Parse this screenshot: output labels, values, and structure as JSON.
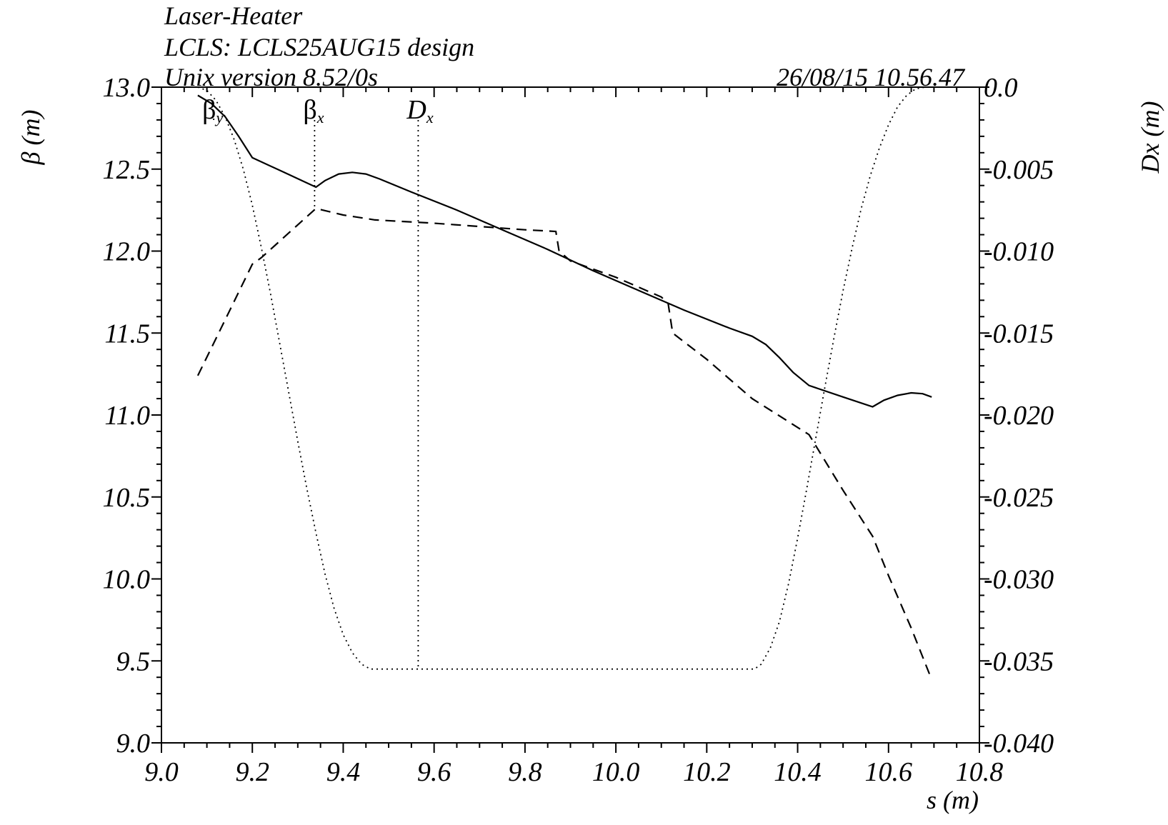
{
  "header": {
    "line1": "Laser-Heater",
    "line2": "LCLS: LCLS25AUG15 design",
    "line3": "Unix version 8.52/0s",
    "timestamp": "26/08/15  10.56.47"
  },
  "chart_data": {
    "type": "line",
    "xlabel": "s (m)",
    "ylabel_left": "β (m)",
    "ylabel_right": "Dx (m)",
    "xlim": [
      9.0,
      10.8
    ],
    "ylim_left": [
      9.0,
      13.0
    ],
    "ylim_right": [
      -0.04,
      0.0
    ],
    "x_ticks": [
      "9.0",
      "9.2",
      "9.4",
      "9.6",
      "9.8",
      "10.0",
      "10.2",
      "10.4",
      "10.6",
      "10.8"
    ],
    "left_ticks": [
      "9.0",
      "9.5",
      "10.0",
      "10.5",
      "11.0",
      "11.5",
      "12.0",
      "12.5",
      "13.0"
    ],
    "right_ticks": [
      "-0.040",
      "-0.035",
      "-0.030",
      "-0.025",
      "-0.020",
      "-0.015",
      "-0.010",
      "-0.005",
      "0.0"
    ],
    "grid": false,
    "series": [
      {
        "name": "βy",
        "label_main": "β",
        "label_sub": "y",
        "axis": "left",
        "style": "solid",
        "label_x": 9.115,
        "x": [
          9.08,
          9.11,
          9.14,
          9.17,
          9.2,
          9.27,
          9.34,
          9.36,
          9.39,
          9.42,
          9.45,
          9.48,
          9.55,
          9.65,
          9.75,
          9.85,
          9.95,
          10.05,
          10.15,
          10.25,
          10.3,
          10.33,
          10.36,
          10.39,
          10.425,
          10.5,
          10.565,
          10.59,
          10.62,
          10.65,
          10.675,
          10.695
        ],
        "y": [
          12.95,
          12.9,
          12.82,
          12.7,
          12.57,
          12.48,
          12.39,
          12.43,
          12.47,
          12.48,
          12.47,
          12.44,
          12.36,
          12.25,
          12.13,
          12.01,
          11.88,
          11.76,
          11.64,
          11.53,
          11.48,
          11.43,
          11.35,
          11.26,
          11.18,
          11.11,
          11.05,
          11.09,
          11.12,
          11.135,
          11.13,
          11.11
        ]
      },
      {
        "name": "βx",
        "label_main": "β",
        "label_sub": "x",
        "axis": "left",
        "style": "dashed",
        "label_x": 9.337,
        "x": [
          9.08,
          9.14,
          9.2,
          9.22,
          9.34,
          9.4,
          9.47,
          9.6,
          9.7,
          9.8,
          9.868,
          9.875,
          9.9,
          10.0,
          10.1,
          10.115,
          10.125,
          10.2,
          10.3,
          10.425,
          10.5,
          10.565,
          10.6,
          10.65,
          10.693
        ],
        "y": [
          11.24,
          11.58,
          11.92,
          11.96,
          12.26,
          12.22,
          12.19,
          12.17,
          12.15,
          12.13,
          12.12,
          12.0,
          11.94,
          11.84,
          11.72,
          11.68,
          11.5,
          11.34,
          11.1,
          10.88,
          10.54,
          10.26,
          10.02,
          9.7,
          9.4
        ]
      },
      {
        "name": "Dx",
        "label_main": "D",
        "label_sub": "x",
        "axis": "right",
        "style": "dotted",
        "label_x": 9.565,
        "x": [
          9.08,
          9.1,
          9.12,
          9.14,
          9.16,
          9.18,
          9.2,
          9.22,
          9.24,
          9.26,
          9.28,
          9.3,
          9.32,
          9.34,
          9.36,
          9.38,
          9.4,
          9.42,
          9.44,
          9.46,
          9.565,
          9.8,
          10.0,
          10.2,
          10.305,
          10.32,
          10.34,
          10.36,
          10.38,
          10.4,
          10.42,
          10.44,
          10.46,
          10.48,
          10.5,
          10.52,
          10.54,
          10.56,
          10.58,
          10.6,
          10.62,
          10.64,
          10.66,
          10.68,
          10.693
        ],
        "y": [
          0.0,
          -0.0002,
          -0.0008,
          -0.0018,
          -0.0032,
          -0.005,
          -0.0072,
          -0.0098,
          -0.0126,
          -0.0156,
          -0.0186,
          -0.0216,
          -0.0245,
          -0.0272,
          -0.0297,
          -0.0318,
          -0.0334,
          -0.0345,
          -0.0352,
          -0.0355,
          -0.0355,
          -0.0355,
          -0.0355,
          -0.0355,
          -0.0355,
          -0.0352,
          -0.0342,
          -0.0326,
          -0.0303,
          -0.0275,
          -0.0245,
          -0.0214,
          -0.0183,
          -0.0153,
          -0.0124,
          -0.0098,
          -0.0074,
          -0.0054,
          -0.0037,
          -0.0023,
          -0.0012,
          -0.0005,
          -0.0001,
          0.0,
          0.0
        ]
      }
    ]
  }
}
